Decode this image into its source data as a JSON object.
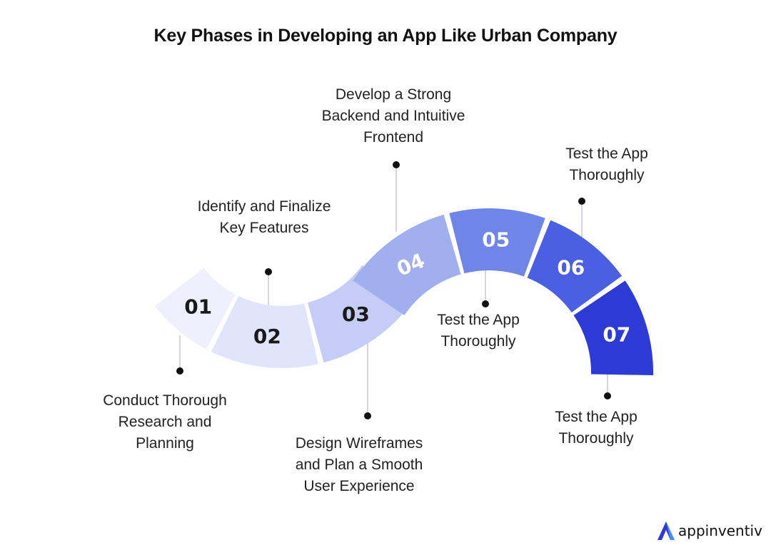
{
  "title": "Key Phases in Developing an App Like Urban Company",
  "phases": [
    {
      "number": "01",
      "label": "Conduct Thorough Research and Planning",
      "color": "#eff0fc",
      "text_color": "#1a1a1a"
    },
    {
      "number": "02",
      "label": "Identify and Finalize Key Features",
      "color": "#e1e5fb",
      "text_color": "#1a1a1a"
    },
    {
      "number": "03",
      "label": "Design Wireframes and Plan a Smooth User Experience",
      "color": "#c5ccf6",
      "text_color": "#1a1a1a"
    },
    {
      "number": "04",
      "label": "Develop a Strong Backend and Intuitive Frontend",
      "color": "#a1afef",
      "text_color": "#ffffff"
    },
    {
      "number": "05",
      "label": "Test the App Thoroughly",
      "color": "#6f86e8",
      "text_color": "#ffffff"
    },
    {
      "number": "06",
      "label": "Test the App Thoroughly",
      "color": "#4a5fe2",
      "text_color": "#ffffff"
    },
    {
      "number": "07",
      "label": "Test the App Thoroughly",
      "color": "#2e3ad6",
      "text_color": "#ffffff"
    }
  ],
  "label_lines": {
    "p1": [
      "Conduct Thorough",
      "Research and",
      "Planning"
    ],
    "p2": [
      "Identify and Finalize",
      "Key Features"
    ],
    "p3": [
      "Design Wireframes",
      "and Plan a Smooth",
      "User Experience"
    ],
    "p4": [
      "Develop a Strong",
      "Backend and Intuitive",
      "Frontend"
    ],
    "p5": [
      "Test the App",
      "Thoroughly"
    ],
    "p6": [
      "Test the App",
      "Thoroughly"
    ],
    "p7": [
      "Test the App",
      "Thoroughly"
    ]
  },
  "brand": {
    "name": "appinventiv",
    "logo_icon": "a-logo-icon",
    "color": "#2e3ad6"
  }
}
